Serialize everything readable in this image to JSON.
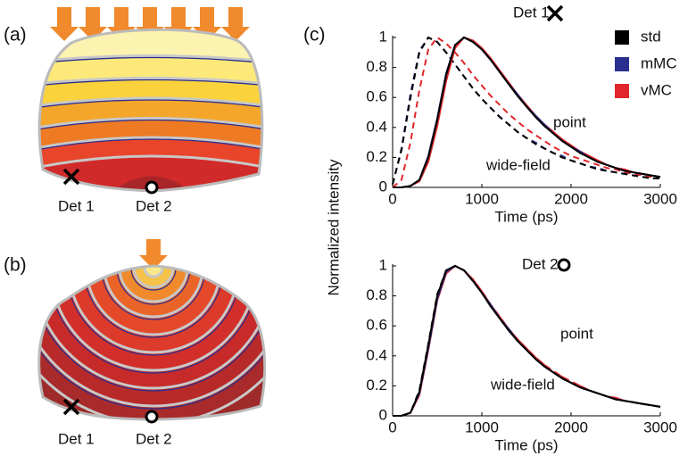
{
  "figure": {
    "panel_a": {
      "label": "(a)",
      "det1": "Det 1",
      "det2": "Det 2"
    },
    "panel_b": {
      "label": "(b)",
      "det1": "Det 1",
      "det2": "Det 2"
    },
    "panel_c": {
      "label": "(c)"
    }
  },
  "chart_data": [
    {
      "type": "line",
      "title": "Det 1",
      "y_label": "Normalized intensity",
      "x_label": "Time (ps)",
      "x": [
        0,
        100,
        200,
        300,
        400,
        500,
        600,
        700,
        800,
        900,
        1000,
        1100,
        1200,
        1300,
        1400,
        1500,
        1600,
        1700,
        1800,
        1900,
        2000,
        2100,
        2200,
        2300,
        2400,
        2500,
        2600,
        2700,
        2800,
        2900,
        3000
      ],
      "xlim": [
        0,
        3000
      ],
      "xticks": [
        0,
        1000,
        2000,
        3000
      ],
      "ylim": [
        0,
        1
      ],
      "yticks": [
        0,
        0.2,
        0.4,
        0.6,
        0.8,
        1
      ],
      "legend": true,
      "legend_position": "upper right",
      "annotations": [
        "point",
        "wide-field"
      ],
      "series": [
        {
          "name": "std",
          "color": "#000000",
          "values": [
            0,
            0,
            0.01,
            0.05,
            0.2,
            0.45,
            0.75,
            0.95,
            1,
            0.97,
            0.92,
            0.85,
            0.77,
            0.69,
            0.61,
            0.54,
            0.47,
            0.41,
            0.36,
            0.31,
            0.27,
            0.23,
            0.2,
            0.17,
            0.15,
            0.13,
            0.11,
            0.1,
            0.09,
            0.08,
            0.07
          ],
          "dashed_values": [
            0.02,
            0.25,
            0.6,
            0.9,
            1,
            0.97,
            0.9,
            0.82,
            0.74,
            0.66,
            0.59,
            0.53,
            0.47,
            0.42,
            0.37,
            0.33,
            0.29,
            0.26,
            0.23,
            0.2,
            0.18,
            0.16,
            0.14,
            0.12,
            0.11,
            0.1,
            0.09,
            0.08,
            0.07,
            0.06,
            0.06
          ]
        },
        {
          "name": "mMC",
          "color": "#2b2f8f",
          "values": [
            0,
            0,
            0.01,
            0.05,
            0.21,
            0.46,
            0.76,
            0.95,
            1,
            0.97,
            0.92,
            0.85,
            0.77,
            0.69,
            0.62,
            0.54,
            0.48,
            0.42,
            0.36,
            0.31,
            0.27,
            0.24,
            0.2,
            0.17,
            0.15,
            0.13,
            0.11,
            0.1,
            0.09,
            0.08,
            0.07
          ],
          "dashed_values": [
            0.02,
            0.26,
            0.62,
            0.91,
            1,
            0.97,
            0.9,
            0.82,
            0.74,
            0.66,
            0.59,
            0.53,
            0.47,
            0.42,
            0.37,
            0.33,
            0.3,
            0.26,
            0.23,
            0.21,
            0.18,
            0.16,
            0.14,
            0.13,
            0.11,
            0.1,
            0.09,
            0.08,
            0.07,
            0.06,
            0.06
          ]
        },
        {
          "name": "vMC",
          "color": "#e0262b",
          "values": [
            0,
            0,
            0.01,
            0.04,
            0.17,
            0.41,
            0.71,
            0.93,
            1,
            0.98,
            0.93,
            0.86,
            0.78,
            0.7,
            0.62,
            0.55,
            0.48,
            0.42,
            0.37,
            0.32,
            0.28,
            0.24,
            0.21,
            0.18,
            0.15,
            0.13,
            0.12,
            0.1,
            0.09,
            0.08,
            0.07
          ],
          "dashed_values": [
            0,
            0.05,
            0.3,
            0.65,
            0.92,
            1,
            0.96,
            0.9,
            0.83,
            0.75,
            0.68,
            0.61,
            0.55,
            0.49,
            0.44,
            0.39,
            0.35,
            0.31,
            0.27,
            0.24,
            0.21,
            0.19,
            0.17,
            0.15,
            0.13,
            0.12,
            0.1,
            0.09,
            0.08,
            0.07,
            0.07
          ]
        }
      ]
    },
    {
      "type": "line",
      "title": "Det 2",
      "x_label": "Time (ps)",
      "x": [
        0,
        100,
        200,
        300,
        400,
        500,
        600,
        700,
        800,
        900,
        1000,
        1100,
        1200,
        1300,
        1400,
        1500,
        1600,
        1700,
        1800,
        1900,
        2000,
        2100,
        2200,
        2300,
        2400,
        2500,
        2600,
        2700,
        2800,
        2900,
        3000
      ],
      "xlim": [
        0,
        3000
      ],
      "xticks": [
        0,
        1000,
        2000,
        3000
      ],
      "ylim": [
        0,
        1
      ],
      "yticks": [
        0,
        0.2,
        0.4,
        0.6,
        0.8,
        1
      ],
      "legend": false,
      "annotations": [
        "point",
        "wide-field"
      ],
      "series": [
        {
          "name": "std",
          "color": "#000000",
          "values": [
            0,
            0,
            0.02,
            0.16,
            0.47,
            0.8,
            0.97,
            1,
            0.97,
            0.9,
            0.82,
            0.73,
            0.65,
            0.57,
            0.5,
            0.44,
            0.38,
            0.33,
            0.29,
            0.25,
            0.22,
            0.19,
            0.17,
            0.15,
            0.13,
            0.11,
            0.1,
            0.09,
            0.08,
            0.07,
            0.06
          ],
          "dashed_values": [
            0,
            0,
            0.02,
            0.17,
            0.48,
            0.81,
            0.97,
            1,
            0.97,
            0.9,
            0.82,
            0.73,
            0.65,
            0.57,
            0.5,
            0.44,
            0.38,
            0.33,
            0.29,
            0.25,
            0.22,
            0.19,
            0.17,
            0.15,
            0.13,
            0.11,
            0.1,
            0.09,
            0.08,
            0.07,
            0.06
          ]
        },
        {
          "name": "mMC",
          "color": "#2b2f8f",
          "values": [
            0,
            0,
            0.02,
            0.15,
            0.45,
            0.78,
            0.96,
            1,
            0.97,
            0.9,
            0.82,
            0.74,
            0.65,
            0.58,
            0.5,
            0.44,
            0.38,
            0.33,
            0.29,
            0.25,
            0.22,
            0.19,
            0.17,
            0.15,
            0.13,
            0.11,
            0.1,
            0.09,
            0.08,
            0.07,
            0.06
          ],
          "dashed_values": [
            0,
            0,
            0.02,
            0.15,
            0.45,
            0.78,
            0.96,
            1,
            0.97,
            0.9,
            0.83,
            0.74,
            0.66,
            0.58,
            0.51,
            0.44,
            0.39,
            0.34,
            0.29,
            0.25,
            0.22,
            0.19,
            0.17,
            0.15,
            0.13,
            0.11,
            0.1,
            0.09,
            0.08,
            0.07,
            0.06
          ]
        },
        {
          "name": "vMC",
          "color": "#e0262b",
          "values": [
            0,
            0,
            0.02,
            0.14,
            0.44,
            0.77,
            0.95,
            1,
            0.97,
            0.91,
            0.83,
            0.74,
            0.66,
            0.58,
            0.51,
            0.45,
            0.39,
            0.34,
            0.29,
            0.26,
            0.22,
            0.2,
            0.17,
            0.15,
            0.13,
            0.12,
            0.1,
            0.09,
            0.08,
            0.07,
            0.06
          ],
          "dashed_values": [
            0,
            0,
            0.02,
            0.14,
            0.44,
            0.77,
            0.95,
            1,
            0.97,
            0.91,
            0.83,
            0.74,
            0.66,
            0.58,
            0.51,
            0.45,
            0.39,
            0.34,
            0.3,
            0.26,
            0.23,
            0.2,
            0.17,
            0.15,
            0.13,
            0.12,
            0.1,
            0.09,
            0.08,
            0.07,
            0.06
          ]
        }
      ]
    }
  ]
}
